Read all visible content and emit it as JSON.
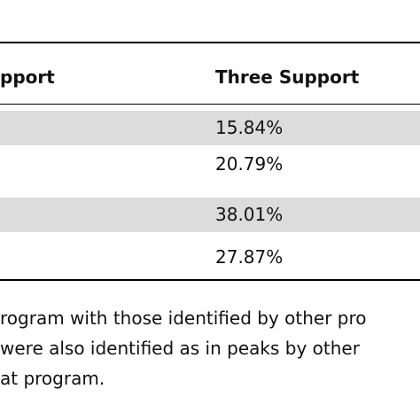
{
  "table": {
    "columns": [
      "pport",
      "Three Support"
    ],
    "rows": [
      {
        "col1": "",
        "col2": "15.84%"
      },
      {
        "col1": "",
        "col2": "20.79%"
      },
      {
        "col1": "",
        "col2": "38.01%"
      },
      {
        "col1": "",
        "col2": "27.87%"
      }
    ]
  },
  "caption": {
    "lines": [
      "rogram with those identified by other pro",
      "were also identified as in peaks by other",
      "at program."
    ]
  }
}
